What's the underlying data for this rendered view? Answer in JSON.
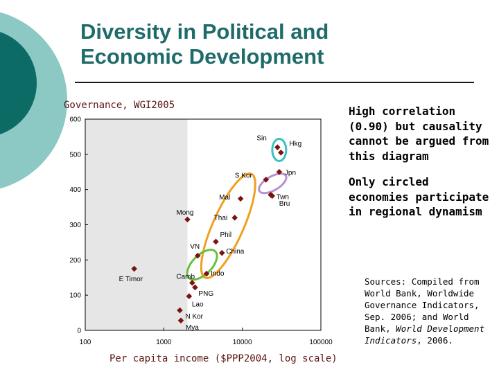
{
  "slide": {
    "title_line1": "Diversity in Political and",
    "title_line2": "Economic Development",
    "accent_dark": "#0d6b66",
    "accent_light": "#8cc8c4",
    "title_color": "#1f6b6b"
  },
  "bullets": [
    "High correlation (0.90) but causality cannot be argued from this diagram",
    "Only circled economies participate in regional dynamism"
  ],
  "sources": {
    "part1": "Sources: Compiled from World Bank, Worldwide Governance Indicators, Sep. 2006; and World Bank,",
    "part2": "World Development Indicators",
    "part3": ", 2006."
  },
  "chart_data": {
    "type": "scatter",
    "title": "Governance, WGI2005",
    "xlabel": "Per capita income ($PPP2004, log scale)",
    "ylabel": "",
    "xscale": "log",
    "xlim": [
      100,
      100000
    ],
    "ylim": [
      0,
      600
    ],
    "x_ticks": [
      100,
      1000,
      10000,
      100000
    ],
    "x_tick_labels": [
      "100",
      "1000",
      "10000",
      "100000"
    ],
    "y_ticks": [
      0,
      100,
      200,
      300,
      400,
      500,
      600
    ],
    "y_tick_labels": [
      "0",
      "100",
      "200",
      "300",
      "400",
      "500",
      "600"
    ],
    "shaded_region": {
      "from_x": 100,
      "to_x": 2000
    },
    "colors": {
      "marker": "#7a1410",
      "text": "#5a1410",
      "shade": "#e6e6e6",
      "orange": "#f0a020",
      "teal": "#3cc0c0",
      "purple": "#b890d0",
      "green": "#66c040"
    },
    "points": [
      {
        "name": "Sin",
        "x": 28000,
        "y": 520
      },
      {
        "name": "Hkg",
        "x": 31000,
        "y": 505
      },
      {
        "name": "Jpn",
        "x": 29500,
        "y": 450
      },
      {
        "name": "S Kor",
        "x": 20000,
        "y": 428
      },
      {
        "name": "Twn",
        "x": 23000,
        "y": 385
      },
      {
        "name": "Bru",
        "x": 24000,
        "y": 382
      },
      {
        "name": "Mal",
        "x": 9500,
        "y": 374
      },
      {
        "name": "Thai",
        "x": 8000,
        "y": 320
      },
      {
        "name": "Mong",
        "x": 2000,
        "y": 315
      },
      {
        "name": "Phil",
        "x": 4600,
        "y": 252
      },
      {
        "name": "China",
        "x": 5500,
        "y": 220
      },
      {
        "name": "VN",
        "x": 2700,
        "y": 212
      },
      {
        "name": "Indo",
        "x": 3500,
        "y": 161
      },
      {
        "name": "E Timor",
        "x": 420,
        "y": 175
      },
      {
        "name": "Camb",
        "x": 2300,
        "y": 135
      },
      {
        "name": "PNG",
        "x": 2500,
        "y": 122
      },
      {
        "name": "Lao",
        "x": 2100,
        "y": 97
      },
      {
        "name": "N Kor",
        "x": 1600,
        "y": 57
      },
      {
        "name": "Mya",
        "x": 1650,
        "y": 28
      }
    ]
  }
}
